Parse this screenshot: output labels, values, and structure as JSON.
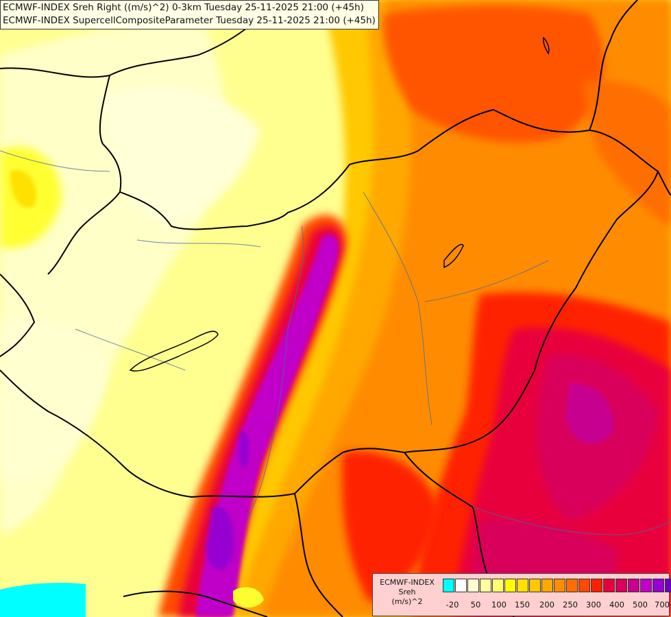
{
  "titles": {
    "line1": "ECMWF-INDEX Sreh Right ((m/s)^2) 0-3km Tuesday 25-11-2025 21:00 (+45h)",
    "line2": "ECMWF-INDEX SupercellCompositeParameter Tuesday 25-11-2025 21:00 (+45h)"
  },
  "legend": {
    "source": "ECMWF-INDEX",
    "variable": "Sreh",
    "unit": "(m/s)^2",
    "colors": [
      "#00ffff",
      "#ffffff",
      "#ffffd0",
      "#ffffa0",
      "#ffff70",
      "#ffff00",
      "#ffe000",
      "#ffc800",
      "#ffa800",
      "#ff8c00",
      "#ff6e00",
      "#ff4800",
      "#ff2000",
      "#e8003c",
      "#d8005a",
      "#c80090",
      "#c000c8",
      "#9600d0",
      "#6e00c0",
      "#4600a0",
      "#000090"
    ],
    "tick_labels": [
      "-20",
      "50",
      "100",
      "150",
      "200",
      "250",
      "300",
      "400",
      "500",
      "700"
    ]
  }
}
